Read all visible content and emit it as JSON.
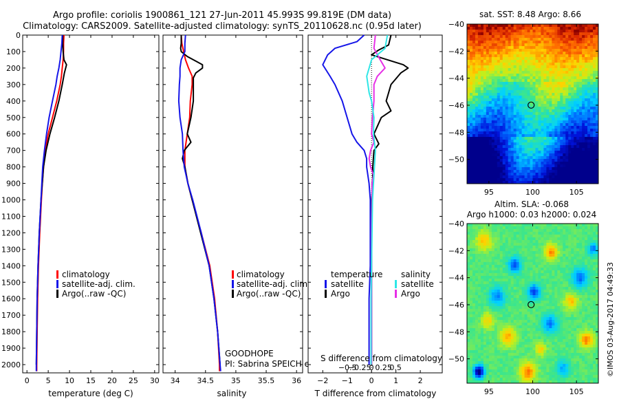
{
  "figure": {
    "title_line1": "Argo profile: coriolis 1900861_121 27-Jun-2011 45.993S 99.819E (DM data)",
    "title_line2": "Climatology: CARS2009. Satellite-adjusted climatology: synTS_20110628.nc (0.95d later)",
    "footer_site": "GOODHOPE",
    "footer_pi": "PI: Sabrina SPEICH et Michel ARHAN",
    "credit": "©IMOS 03-Aug-2017 04:49:33"
  },
  "colors": {
    "climatology": "#ff0000",
    "satellite": "#1515e8",
    "argo": "#000000",
    "satellite_salinity": "#2ee6e6",
    "argo_salinity": "#e62ee6"
  },
  "chart_data": [
    {
      "type": "line",
      "xlabel": "temperature (deg C)",
      "xlim": [
        -1,
        31
      ],
      "xticks": [
        0,
        5,
        10,
        15,
        20,
        25,
        30
      ],
      "ylim": [
        2050,
        0
      ],
      "yticks": [
        0,
        100,
        200,
        300,
        400,
        500,
        600,
        700,
        800,
        900,
        1000,
        1100,
        1200,
        1300,
        1400,
        1500,
        1600,
        1700,
        1800,
        1900,
        2000
      ],
      "legend": [
        "climatology",
        "satellite-adj. clim.",
        "Argo(..raw -QC)"
      ],
      "legend_position": "lower-right",
      "series": [
        {
          "name": "climatology",
          "y": [
            0,
            50,
            100,
            150,
            200,
            250,
            300,
            400,
            500,
            600,
            700,
            800,
            900,
            1000,
            1200,
            1400,
            1600,
            1800,
            2000,
            2040
          ],
          "values": [
            8.7,
            8.6,
            8.6,
            8.5,
            8.3,
            8.1,
            7.8,
            7.0,
            6.0,
            5.0,
            4.3,
            3.9,
            3.6,
            3.4,
            3.0,
            2.7,
            2.5,
            2.4,
            2.3,
            2.3
          ]
        },
        {
          "name": "satellite-adj. clim.",
          "y": [
            0,
            50,
            100,
            150,
            200,
            250,
            300,
            400,
            500,
            600,
            700,
            800,
            900,
            1000,
            1200,
            1400,
            1600,
            1800,
            2000,
            2040
          ],
          "values": [
            8.3,
            8.2,
            8.0,
            7.8,
            7.5,
            7.1,
            6.8,
            6.0,
            5.2,
            4.6,
            4.1,
            3.7,
            3.5,
            3.3,
            2.9,
            2.6,
            2.4,
            2.3,
            2.2,
            2.2
          ]
        },
        {
          "name": "Argo(..raw -QC)",
          "y": [
            0,
            50,
            100,
            150,
            180,
            200,
            230,
            300,
            400,
            500,
            600,
            700,
            800,
            900,
            1000,
            1200,
            1400,
            1600,
            1800,
            2000
          ],
          "values": [
            8.4,
            8.4,
            8.5,
            8.7,
            9.3,
            9.1,
            8.8,
            8.3,
            7.5,
            6.5,
            5.4,
            4.5,
            3.9,
            3.6,
            3.3,
            2.9,
            2.6,
            2.4,
            2.3,
            2.2
          ]
        }
      ]
    },
    {
      "type": "line",
      "xlabel": "salinity",
      "xlim": [
        33.8,
        36.1
      ],
      "xticks": [
        34,
        34.5,
        35,
        35.5,
        36
      ],
      "xtick_labels": [
        "34",
        "34.5",
        "35",
        "35.5",
        "36"
      ],
      "ylim": [
        2050,
        0
      ],
      "legend": [
        "climatology",
        "satellite-adj. clim.",
        "Argo(..raw -QC)"
      ],
      "legend_position": "lower-right",
      "series": [
        {
          "name": "climatology",
          "y": [
            0,
            50,
            100,
            150,
            200,
            250,
            300,
            400,
            500,
            600,
            700,
            800,
            900,
            1000,
            1200,
            1400,
            1600,
            1800,
            2000,
            2040
          ],
          "values": [
            34.1,
            34.11,
            34.14,
            34.17,
            34.22,
            34.28,
            34.28,
            34.25,
            34.24,
            34.2,
            34.16,
            34.16,
            34.21,
            34.28,
            34.43,
            34.57,
            34.65,
            34.7,
            34.73,
            34.73
          ]
        },
        {
          "name": "satellite-adj. clim.",
          "y": [
            0,
            50,
            100,
            150,
            200,
            250,
            300,
            400,
            500,
            600,
            700,
            800,
            900,
            1000,
            1200,
            1400,
            1600,
            1800,
            2000,
            2040
          ],
          "values": [
            34.17,
            34.16,
            34.16,
            34.1,
            34.08,
            34.08,
            34.07,
            34.06,
            34.08,
            34.12,
            34.13,
            34.15,
            34.21,
            34.29,
            34.43,
            34.56,
            34.64,
            34.7,
            34.74,
            34.75
          ]
        },
        {
          "name": "Argo(..raw -QC)",
          "y": [
            0,
            50,
            80,
            100,
            130,
            160,
            180,
            200,
            230,
            260,
            300,
            400,
            500,
            600,
            650,
            700,
            750,
            800,
            900,
            1000,
            1200,
            1400,
            1600,
            1800,
            2000
          ],
          "values": [
            34.1,
            34.1,
            34.09,
            34.1,
            34.2,
            34.35,
            34.45,
            34.45,
            34.34,
            34.3,
            34.3,
            34.3,
            34.26,
            34.2,
            34.26,
            34.15,
            34.12,
            34.16,
            34.21,
            34.28,
            34.42,
            34.56,
            34.64,
            34.7,
            34.74
          ]
        }
      ]
    },
    {
      "type": "line",
      "xlabel": "T difference from climatology",
      "xlabel_top": "S difference from climatology",
      "xlim": [
        -2.6,
        2.9
      ],
      "xticks": [
        -2,
        -1,
        0,
        1,
        2
      ],
      "xtick_labels": [
        "−2",
        "−1",
        "0",
        "1",
        "2"
      ],
      "sticks": [
        -0.5,
        -0.25,
        0,
        0.25,
        0.5
      ],
      "stick_labels": [
        "−0.5",
        "−0.25",
        "0",
        "0.25",
        "0.5"
      ],
      "ylim": [
        2050,
        0
      ],
      "legend_headers": [
        "temperature",
        "salinity"
      ],
      "legend": [
        "satellite",
        "Argo",
        "satellite",
        "Argo"
      ],
      "legend_position": "lower-right",
      "series": [
        {
          "name": "satellite",
          "group": "temperature",
          "y": [
            0,
            40,
            80,
            120,
            180,
            250,
            300,
            400,
            500,
            600,
            650,
            700,
            750,
            800,
            900,
            1000,
            1200,
            1400,
            1600,
            1800,
            2000
          ],
          "values": [
            -0.3,
            -0.6,
            -1.5,
            -1.8,
            -2.0,
            -1.7,
            -1.5,
            -1.2,
            -1.0,
            -0.8,
            -0.6,
            -0.3,
            -0.2,
            -0.2,
            -0.1,
            -0.05,
            -0.05,
            -0.05,
            -0.1,
            -0.1,
            -0.1
          ]
        },
        {
          "name": "Argo",
          "group": "temperature",
          "y": [
            0,
            60,
            90,
            120,
            180,
            200,
            230,
            300,
            400,
            460,
            500,
            600,
            660,
            700,
            800,
            900,
            1000,
            1200,
            1600,
            2000
          ],
          "values": [
            0.8,
            0.7,
            0.3,
            0.0,
            1.3,
            1.5,
            1.2,
            0.8,
            0.6,
            0.8,
            0.4,
            0.1,
            0.3,
            0.1,
            0.05,
            0.05,
            0.0,
            0.0,
            0.0,
            0.0
          ]
        },
        {
          "name": "satellite",
          "group": "salinity",
          "y": [
            0,
            80,
            150,
            250,
            350,
            400,
            500,
            600,
            700,
            800,
            900,
            1000,
            1200,
            1400,
            1600,
            1800,
            2000
          ],
          "values": [
            0.33,
            0.28,
            0.0,
            -0.1,
            -0.05,
            0.0,
            0.05,
            0.04,
            0.08,
            0.06,
            0.04,
            0.02,
            0.01,
            0.0,
            -0.01,
            -0.01,
            -0.01
          ]
        },
        {
          "name": "Argo",
          "group": "salinity",
          "y": [
            0,
            80,
            150,
            200,
            250,
            300,
            400,
            500,
            600,
            650,
            700,
            750,
            800,
            850,
            900,
            1000,
            1200,
            1400,
            1600,
            1800,
            2000
          ],
          "values": [
            0.08,
            0.05,
            0.18,
            0.28,
            0.12,
            0.05,
            0.05,
            0.02,
            0.0,
            0.05,
            -0.02,
            -0.05,
            -0.02,
            0.04,
            0.01,
            0.01,
            0.0,
            0.0,
            0.0,
            0.0,
            0.0
          ]
        }
      ]
    },
    {
      "type": "heatmap",
      "title": "sat. SST: 8.48 Argo: 8.66",
      "xlim": [
        92.5,
        107.5
      ],
      "xticks": [
        95,
        100,
        105
      ],
      "ylim": [
        -51.8,
        -40
      ],
      "yticks": [
        -40,
        -42,
        -44,
        -46,
        -48,
        -50
      ],
      "ytick_labels": [
        "−40",
        "−42",
        "−44",
        "−46",
        "−48",
        "−50"
      ],
      "marker": {
        "lon": 99.819,
        "lat": -45.993
      }
    },
    {
      "type": "heatmap",
      "title_line1": "Altim. SLA: -0.068",
      "title_line2": "Argo h1000: 0.03 h2000: 0.024",
      "xlim": [
        92.5,
        107.5
      ],
      "xticks": [
        95,
        100,
        105
      ],
      "ylim": [
        -51.8,
        -40
      ],
      "yticks": [
        -40,
        -42,
        -44,
        -46,
        -48,
        -50
      ],
      "ytick_labels": [
        "−40",
        "−42",
        "−44",
        "−46",
        "−48",
        "−50"
      ],
      "marker": {
        "lon": 99.819,
        "lat": -45.993
      }
    }
  ]
}
